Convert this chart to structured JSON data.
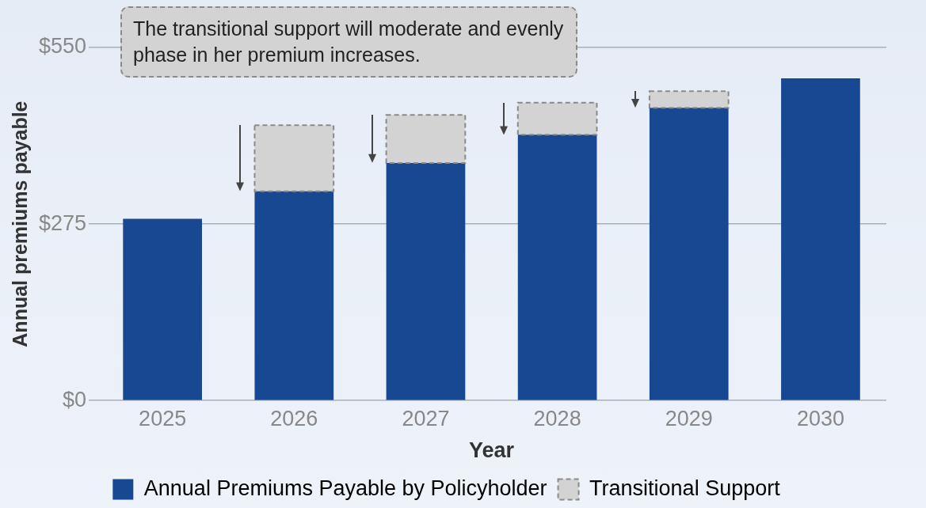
{
  "chart_data": {
    "type": "bar",
    "stacked": true,
    "categories": [
      "2025",
      "2026",
      "2027",
      "2028",
      "2029",
      "2030"
    ],
    "series": [
      {
        "name": "Annual Premiums Payable by Policyholder",
        "color": "#184892",
        "values": [
          283,
          326,
          370,
          414,
          456,
          502
        ]
      },
      {
        "name": "Transitional Support",
        "color": "#d3d3d3",
        "line_style": "dashed",
        "values": [
          null,
          103,
          75,
          50,
          26,
          null
        ]
      }
    ],
    "xlabel": "Year",
    "ylabel": "Annual premiums payable",
    "ylim": [
      0,
      550
    ],
    "yticks": [
      {
        "value": 0,
        "label": "$0"
      },
      {
        "value": 275,
        "label": "$275"
      },
      {
        "value": 550,
        "label": "$550"
      }
    ],
    "grid": "y",
    "legend": "bottom",
    "annotations": [
      "The transitional support will moderate and evenly phase in her premium increases."
    ]
  }
}
